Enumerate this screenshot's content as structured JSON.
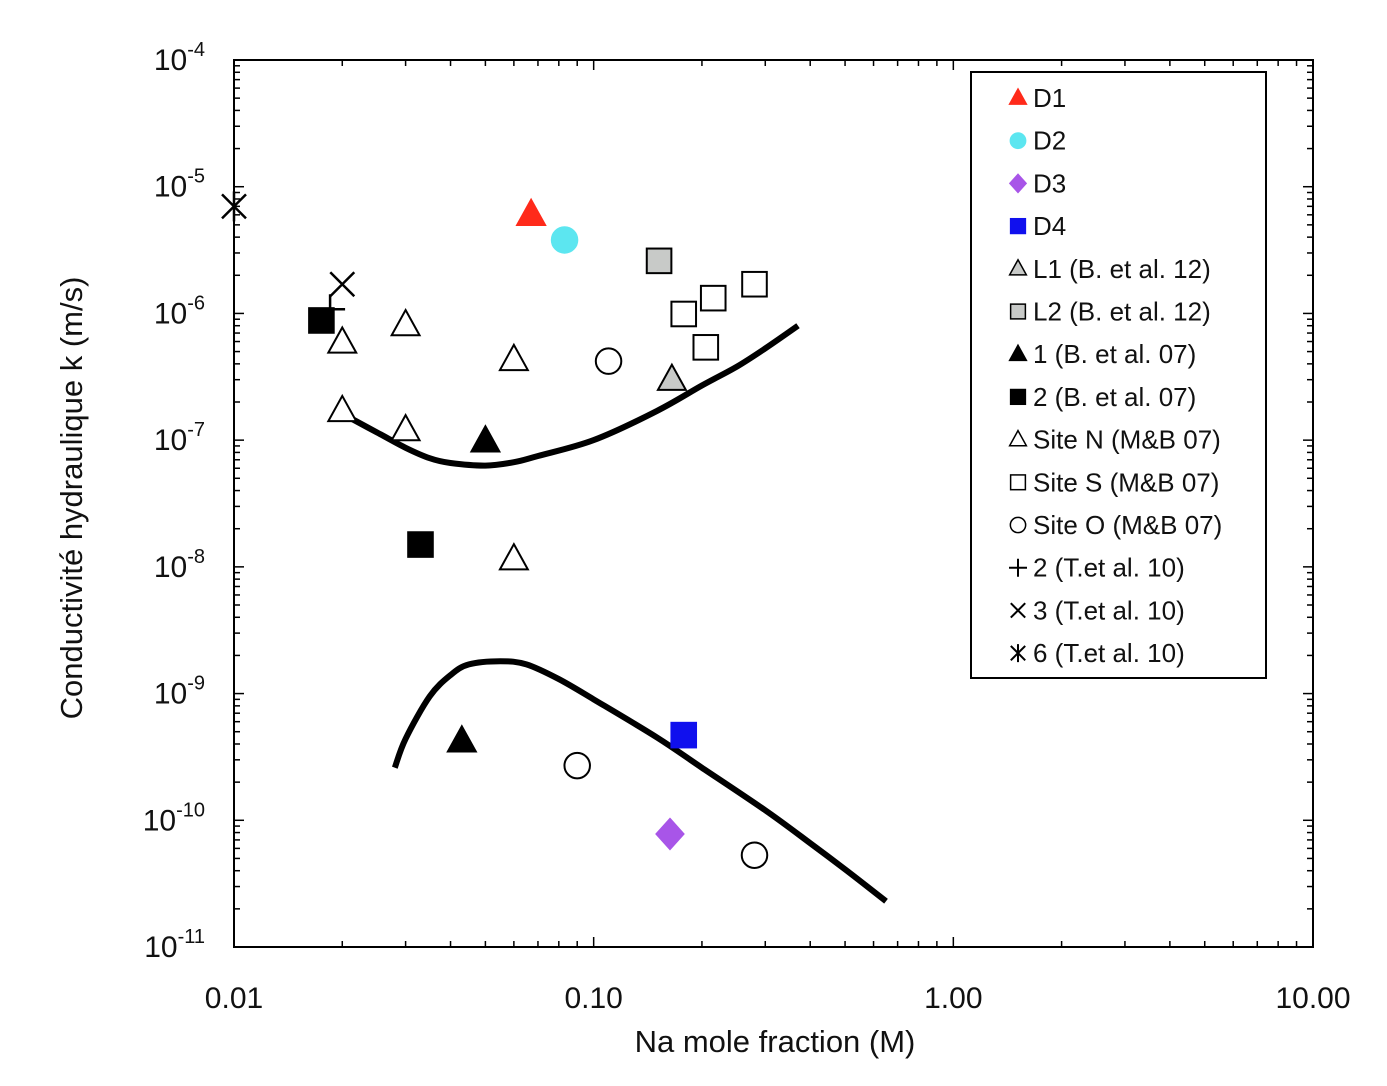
{
  "chart_data": {
    "type": "scatter",
    "xlabel": "Na mole fraction (M)",
    "ylabel": "Conductivité hydraulique k (m/s)",
    "x_scale": "log",
    "y_scale": "log",
    "xlim": [
      0.01,
      10
    ],
    "ylim": [
      1e-11,
      0.0001
    ],
    "x_ticks": [
      {
        "value": 0.01,
        "label": "0.01"
      },
      {
        "value": 0.1,
        "label": "0.10"
      },
      {
        "value": 1,
        "label": "1.00"
      },
      {
        "value": 10,
        "label": "10.00"
      }
    ],
    "y_ticks": [
      {
        "value": 0.0001,
        "base": "10",
        "exp": "-4"
      },
      {
        "value": 1e-05,
        "base": "10",
        "exp": "-5"
      },
      {
        "value": 1e-06,
        "base": "10",
        "exp": "-6"
      },
      {
        "value": 1e-07,
        "base": "10",
        "exp": "-7"
      },
      {
        "value": 1e-08,
        "base": "10",
        "exp": "-8"
      },
      {
        "value": 1e-09,
        "base": "10",
        "exp": "-9"
      },
      {
        "value": 1e-10,
        "base": "10",
        "exp": "-10"
      },
      {
        "value": 1e-11,
        "base": "10",
        "exp": "-11"
      }
    ],
    "grid": false,
    "legend_position": "top-right",
    "series": [
      {
        "name": "D1",
        "marker": "triangle",
        "fill": "#ff2a1a",
        "stroke": "#ff2a1a",
        "points": [
          [
            0.067,
            6e-06
          ]
        ]
      },
      {
        "name": "D2",
        "marker": "circle",
        "fill": "#5ce6f0",
        "stroke": "#5ce6f0",
        "points": [
          [
            0.083,
            3.8e-06
          ]
        ]
      },
      {
        "name": "D3",
        "marker": "diamond",
        "fill": "#a855e8",
        "stroke": "#a855e8",
        "points": [
          [
            0.163,
            7.8e-11
          ]
        ]
      },
      {
        "name": "D4",
        "marker": "square",
        "fill": "#1010ee",
        "stroke": "#1010ee",
        "points": [
          [
            0.178,
            4.7e-10
          ]
        ]
      },
      {
        "name": "L1 (B. et al. 12)",
        "marker": "triangle",
        "fill": "#c8cac8",
        "stroke": "#000000",
        "points": [
          [
            0.165,
            3e-07
          ]
        ]
      },
      {
        "name": "L2 (B. et al. 12)",
        "marker": "square",
        "fill": "#c8cac8",
        "stroke": "#000000",
        "points": [
          [
            0.152,
            2.6e-06
          ]
        ]
      },
      {
        "name": "1 (B. et al. 07)",
        "marker": "triangle",
        "fill": "#000000",
        "stroke": "#000000",
        "points": [
          [
            0.05,
            9.8e-08
          ],
          [
            0.043,
            4.2e-10
          ]
        ]
      },
      {
        "name": "2 (B. et al. 07)",
        "marker": "square",
        "fill": "#000000",
        "stroke": "#000000",
        "points": [
          [
            0.0175,
            8.8e-07
          ],
          [
            0.033,
            1.5e-08
          ]
        ]
      },
      {
        "name": "Site N (M&B 07)",
        "marker": "triangle",
        "fill": "none",
        "stroke": "#000000",
        "points": [
          [
            0.02,
            5.9e-07
          ],
          [
            0.03,
            8.1e-07
          ],
          [
            0.02,
            1.7e-07
          ],
          [
            0.03,
            1.2e-07
          ],
          [
            0.06,
            4.3e-07
          ],
          [
            0.06,
            1.15e-08
          ]
        ]
      },
      {
        "name": "Site S (M&B 07)",
        "marker": "square",
        "fill": "none",
        "stroke": "#000000",
        "points": [
          [
            0.178,
            9.9e-07
          ],
          [
            0.215,
            1.32e-06
          ],
          [
            0.205,
            5.4e-07
          ],
          [
            0.28,
            1.7e-06
          ]
        ]
      },
      {
        "name": "Site O (M&B 07)",
        "marker": "circle",
        "fill": "none",
        "stroke": "#000000",
        "points": [
          [
            0.11,
            4.2e-07
          ],
          [
            0.09,
            2.7e-10
          ],
          [
            0.28,
            5.3e-11
          ]
        ]
      },
      {
        "name": "2 (T.et al. 10)",
        "marker": "plus",
        "fill": "none",
        "stroke": "#000000",
        "points": [
          [
            0.0185,
            1.08e-06
          ]
        ]
      },
      {
        "name": "3 (T.et al. 10)",
        "marker": "cross",
        "fill": "none",
        "stroke": "#000000",
        "points": [
          [
            0.02,
            1.7e-06
          ]
        ]
      },
      {
        "name": "6 (T.et al. 10)",
        "marker": "asterisk",
        "fill": "none",
        "stroke": "#000000",
        "points": [
          [
            0.01,
            7e-06
          ]
        ]
      }
    ],
    "curves": [
      {
        "points": [
          [
            0.021,
            1.5e-07
          ],
          [
            0.025,
            1.15e-07
          ],
          [
            0.03,
            8.7e-08
          ],
          [
            0.035,
            7.2e-08
          ],
          [
            0.04,
            6.6e-08
          ],
          [
            0.05,
            6.3e-08
          ],
          [
            0.06,
            6.7e-08
          ],
          [
            0.07,
            7.5e-08
          ],
          [
            0.1,
            1e-07
          ],
          [
            0.15,
            1.7e-07
          ],
          [
            0.2,
            2.7e-07
          ],
          [
            0.25,
            3.8e-07
          ],
          [
            0.3,
            5.3e-07
          ],
          [
            0.37,
            8e-07
          ]
        ]
      },
      {
        "points": [
          [
            0.028,
            2.6e-10
          ],
          [
            0.03,
            4.4e-10
          ],
          [
            0.035,
            9.5e-10
          ],
          [
            0.04,
            1.4e-09
          ],
          [
            0.045,
            1.7e-09
          ],
          [
            0.055,
            1.8e-09
          ],
          [
            0.065,
            1.7e-09
          ],
          [
            0.08,
            1.3e-09
          ],
          [
            0.1,
            9e-10
          ],
          [
            0.15,
            4.5e-10
          ],
          [
            0.2,
            2.6e-10
          ],
          [
            0.3,
            1.2e-10
          ],
          [
            0.4,
            6.6e-11
          ],
          [
            0.5,
            4.1e-11
          ],
          [
            0.65,
            2.3e-11
          ]
        ]
      }
    ]
  }
}
